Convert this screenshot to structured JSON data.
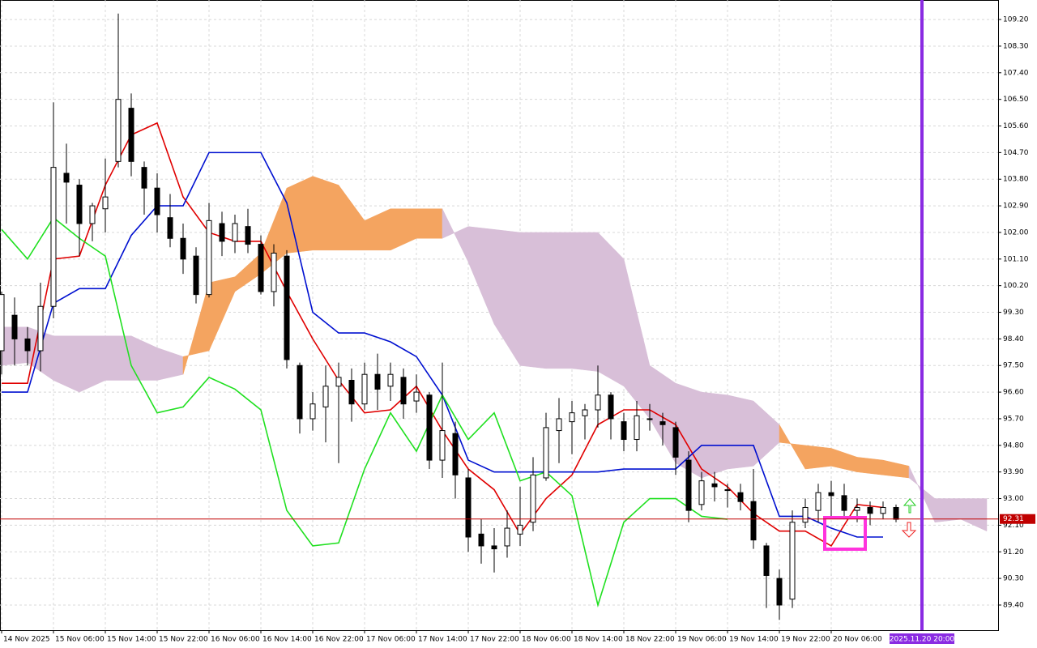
{
  "chart_data": {
    "type": "candlestick",
    "x": [
      0,
      2,
      4,
      6,
      8,
      10,
      12,
      14,
      16,
      18,
      20,
      22,
      24,
      26,
      28,
      30,
      32,
      34,
      36,
      38,
      40,
      42,
      44,
      46,
      48,
      50,
      52,
      54,
      56,
      58,
      60,
      62,
      64,
      66,
      68,
      70,
      72,
      74,
      76,
      78,
      80,
      82,
      84,
      86,
      88,
      90,
      92,
      94,
      96,
      98,
      100,
      102,
      104,
      106,
      108,
      110,
      112,
      114,
      116,
      118,
      120,
      122,
      124,
      126,
      128,
      130,
      132,
      134,
      136,
      138
    ],
    "open": [
      98.0,
      99.2,
      98.4,
      98.0,
      99.5,
      104.0,
      103.6,
      102.3,
      102.8,
      104.4,
      106.2,
      104.2,
      103.5,
      102.5,
      101.8,
      101.2,
      99.9,
      102.3,
      101.7,
      102.2,
      101.6,
      100.0,
      101.2,
      97.5,
      95.7,
      96.1,
      96.8,
      97.0,
      96.2,
      97.2,
      96.8,
      97.1,
      96.3,
      96.5,
      94.3,
      95.2,
      93.7,
      91.8,
      91.4,
      91.4,
      91.8,
      92.2,
      93.7,
      95.3,
      95.6,
      95.8,
      96.0,
      96.5,
      95.6,
      95.0,
      95.7,
      95.6,
      95.4,
      94.3,
      92.8,
      93.5,
      93.3,
      93.2,
      92.9,
      91.4,
      90.3,
      89.6,
      92.2,
      92.6,
      93.2,
      93.1,
      92.6,
      92.7,
      92.5,
      92.7
    ],
    "high": [
      100.0,
      99.8,
      98.8,
      100.3,
      106.4,
      105.0,
      103.8,
      103.0,
      104.5,
      109.4,
      106.7,
      104.4,
      104.0,
      103.3,
      102.3,
      101.5,
      103.0,
      102.7,
      102.6,
      102.8,
      101.9,
      101.6,
      101.4,
      97.6,
      96.6,
      97.5,
      97.6,
      97.4,
      97.6,
      97.9,
      97.6,
      97.4,
      97.2,
      96.6,
      97.6,
      95.6,
      94.0,
      92.3,
      92.0,
      92.6,
      93.4,
      94.4,
      95.9,
      96.4,
      96.3,
      96.2,
      97.5,
      96.6,
      95.9,
      96.3,
      96.2,
      95.9,
      95.6,
      94.6,
      93.9,
      93.9,
      93.5,
      93.5,
      94.0,
      91.5,
      90.6,
      92.6,
      93.0,
      93.5,
      93.6,
      93.5,
      93.0,
      92.9,
      92.9,
      92.8
    ],
    "low": [
      97.2,
      97.5,
      97.5,
      97.3,
      99.1,
      102.3,
      101.2,
      101.7,
      102.0,
      104.2,
      103.9,
      102.6,
      102.0,
      101.5,
      100.6,
      99.6,
      99.8,
      101.2,
      101.3,
      101.3,
      99.9,
      99.5,
      97.4,
      95.2,
      95.3,
      94.9,
      94.2,
      95.6,
      96.0,
      96.0,
      96.3,
      95.7,
      95.9,
      94.0,
      93.7,
      93.0,
      91.2,
      90.8,
      90.5,
      91.0,
      91.4,
      91.9,
      93.6,
      94.2,
      94.5,
      95.0,
      95.4,
      95.0,
      94.6,
      94.6,
      95.3,
      94.8,
      93.8,
      92.2,
      92.6,
      92.9,
      92.7,
      92.6,
      91.3,
      89.3,
      88.9,
      89.3,
      92.0,
      92.2,
      92.4,
      92.3,
      92.2,
      92.1,
      92.3,
      92.2
    ],
    "close": [
      99.9,
      98.4,
      98.0,
      99.5,
      104.2,
      103.7,
      102.3,
      102.9,
      103.2,
      106.5,
      104.4,
      103.5,
      102.6,
      101.8,
      101.1,
      99.9,
      102.4,
      101.7,
      102.3,
      101.6,
      100.0,
      101.3,
      97.7,
      95.7,
      96.2,
      96.8,
      97.1,
      96.2,
      97.2,
      96.7,
      97.2,
      96.2,
      96.6,
      94.3,
      95.3,
      93.8,
      91.7,
      91.4,
      91.3,
      92.0,
      92.1,
      93.8,
      95.4,
      95.7,
      95.9,
      96.0,
      96.5,
      95.7,
      95.0,
      95.8,
      95.7,
      95.5,
      94.4,
      92.6,
      93.6,
      93.4,
      93.3,
      92.9,
      91.6,
      90.4,
      89.4,
      92.2,
      92.7,
      93.2,
      93.1,
      92.6,
      92.7,
      92.5,
      92.7,
      92.3
    ],
    "up_color": "#ffffff",
    "down_color": "#000000",
    "lines": [
      {
        "color": "#e00000",
        "x": [
          0,
          4,
          8,
          12,
          16,
          20,
          24,
          28,
          32,
          36,
          40,
          44,
          48,
          52,
          56,
          60,
          64,
          68,
          72,
          76,
          80,
          84,
          88,
          92,
          96,
          100,
          104,
          108,
          112,
          116,
          120,
          124,
          128,
          132,
          136
        ],
        "values": [
          96.9,
          96.9,
          101.1,
          101.2,
          103.6,
          105.3,
          105.7,
          103.2,
          102.0,
          101.7,
          101.7,
          100.0,
          98.4,
          97.0,
          95.9,
          96.0,
          96.8,
          95.3,
          94.0,
          93.3,
          91.8,
          93.0,
          93.8,
          95.5,
          96.0,
          96.0,
          95.5,
          94.0,
          93.4,
          92.5,
          91.9,
          91.9,
          91.4,
          92.8,
          92.7
        ]
      },
      {
        "color": "#0010d0",
        "x": [
          0,
          4,
          8,
          12,
          16,
          20,
          24,
          28,
          32,
          36,
          40,
          44,
          48,
          52,
          56,
          60,
          64,
          68,
          72,
          76,
          80,
          84,
          88,
          92,
          96,
          100,
          104,
          108,
          112,
          116,
          120,
          124,
          128,
          132,
          136
        ],
        "values": [
          96.6,
          96.6,
          99.6,
          100.1,
          100.1,
          101.9,
          102.9,
          102.9,
          104.7,
          104.7,
          104.7,
          103.0,
          99.3,
          98.6,
          98.6,
          98.3,
          97.8,
          96.5,
          94.3,
          93.9,
          93.9,
          93.9,
          93.9,
          93.9,
          94.0,
          94.0,
          94.0,
          94.8,
          94.8,
          94.8,
          92.4,
          92.4,
          92.0,
          91.7,
          91.7
        ]
      },
      {
        "color": "#20e020",
        "x": [
          0,
          4,
          8,
          12,
          16,
          20,
          24,
          28,
          32,
          36,
          40,
          44,
          48,
          52,
          56,
          60,
          64,
          68,
          72,
          76,
          80,
          84,
          88,
          92,
          96,
          100,
          104,
          108,
          112
        ],
        "values": [
          102.1,
          101.1,
          102.5,
          101.8,
          101.2,
          97.5,
          95.9,
          96.1,
          97.1,
          96.7,
          96.0,
          92.6,
          91.4,
          91.5,
          94.0,
          95.9,
          94.6,
          96.5,
          95.0,
          95.9,
          93.6,
          93.9,
          93.1,
          89.4,
          92.2,
          93.0,
          93.0,
          92.4,
          92.3
        ]
      }
    ],
    "cloud": {
      "x": [
        0,
        4,
        8,
        12,
        16,
        20,
        24,
        28,
        32,
        36,
        40,
        44,
        48,
        52,
        56,
        60,
        64,
        68,
        72,
        76,
        80,
        84,
        88,
        92,
        96,
        100,
        104,
        108,
        112,
        116,
        120,
        124,
        128,
        132,
        136,
        140,
        144,
        148,
        152
      ],
      "span_a": [
        97.5,
        97.6,
        97.0,
        96.6,
        97.0,
        97.0,
        97.0,
        97.2,
        100.3,
        100.5,
        101.3,
        103.5,
        103.9,
        103.6,
        102.4,
        102.8,
        102.8,
        102.8,
        101.0,
        98.9,
        97.5,
        97.4,
        97.4,
        97.3,
        96.8,
        95.7,
        94.2,
        93.7,
        94.0,
        94.1,
        94.9,
        94.8,
        94.7,
        94.4,
        94.3,
        94.1,
        92.2,
        92.3,
        91.9
      ],
      "span_b": [
        98.8,
        98.8,
        98.5,
        98.5,
        98.5,
        98.5,
        98.1,
        97.8,
        98.0,
        100.0,
        100.6,
        101.3,
        101.4,
        101.4,
        101.4,
        101.4,
        101.8,
        101.8,
        102.2,
        102.1,
        102.0,
        102.0,
        102.0,
        102.0,
        101.1,
        97.5,
        96.9,
        96.6,
        96.5,
        96.3,
        95.5,
        94.0,
        94.1,
        93.9,
        93.8,
        93.7,
        93.0,
        93.0,
        93.0
      ],
      "bull_color": "#f4a460",
      "bear_color": "#d8bfd8"
    },
    "last_price": 92.31,
    "last_price_color": "#c00000",
    "time_marker": {
      "value": 142,
      "label": "2025.11.20 20:00",
      "color": "#8a2be2"
    },
    "xlim": [
      -0.25,
      153.75
    ],
    "ylim": [
      88.55,
      109.86
    ],
    "grid": true,
    "xticks": [
      {
        "value": 0,
        "label": "14 Nov 2025"
      },
      {
        "value": 8,
        "label": "15 Nov 06:00"
      },
      {
        "value": 16,
        "label": "15 Nov 14:00"
      },
      {
        "value": 24,
        "label": "15 Nov 22:00"
      },
      {
        "value": 32,
        "label": "16 Nov 06:00"
      },
      {
        "value": 40,
        "label": "16 Nov 14:00"
      },
      {
        "value": 48,
        "label": "16 Nov 22:00"
      },
      {
        "value": 56,
        "label": "17 Nov 06:00"
      },
      {
        "value": 64,
        "label": "17 Nov 14:00"
      },
      {
        "value": 72,
        "label": "17 Nov 22:00"
      },
      {
        "value": 80,
        "label": "18 Nov 06:00"
      },
      {
        "value": 88,
        "label": "18 Nov 14:00"
      },
      {
        "value": 96,
        "label": "18 Nov 22:00"
      },
      {
        "value": 104,
        "label": "19 Nov 06:00"
      },
      {
        "value": 112,
        "label": "19 Nov 14:00"
      },
      {
        "value": 120,
        "label": "19 Nov 22:00"
      },
      {
        "value": 128,
        "label": "20 Nov 06:00"
      }
    ],
    "yticks": [
      {
        "value": 109.2,
        "label": "109.20"
      },
      {
        "value": 108.3,
        "label": "108.30"
      },
      {
        "value": 107.4,
        "label": "107.40"
      },
      {
        "value": 106.5,
        "label": "106.50"
      },
      {
        "value": 105.6,
        "label": "105.60"
      },
      {
        "value": 104.7,
        "label": "104.70"
      },
      {
        "value": 103.8,
        "label": "103.80"
      },
      {
        "value": 102.9,
        "label": "102.90"
      },
      {
        "value": 102.0,
        "label": "102.00"
      },
      {
        "value": 101.1,
        "label": "101.10"
      },
      {
        "value": 100.2,
        "label": "100.20"
      },
      {
        "value": 99.3,
        "label": "99.30"
      },
      {
        "value": 98.4,
        "label": "98.40"
      },
      {
        "value": 97.5,
        "label": "97.50"
      },
      {
        "value": 96.6,
        "label": "96.60"
      },
      {
        "value": 95.7,
        "label": "95.70"
      },
      {
        "value": 94.8,
        "label": "94.80"
      },
      {
        "value": 93.9,
        "label": "93.90"
      },
      {
        "value": 93.0,
        "label": "93.00"
      },
      {
        "value": 92.1,
        "label": "92.10"
      },
      {
        "value": 91.2,
        "label": "91.20"
      },
      {
        "value": 90.3,
        "label": "90.30"
      },
      {
        "value": 89.4,
        "label": "89.40"
      }
    ]
  }
}
